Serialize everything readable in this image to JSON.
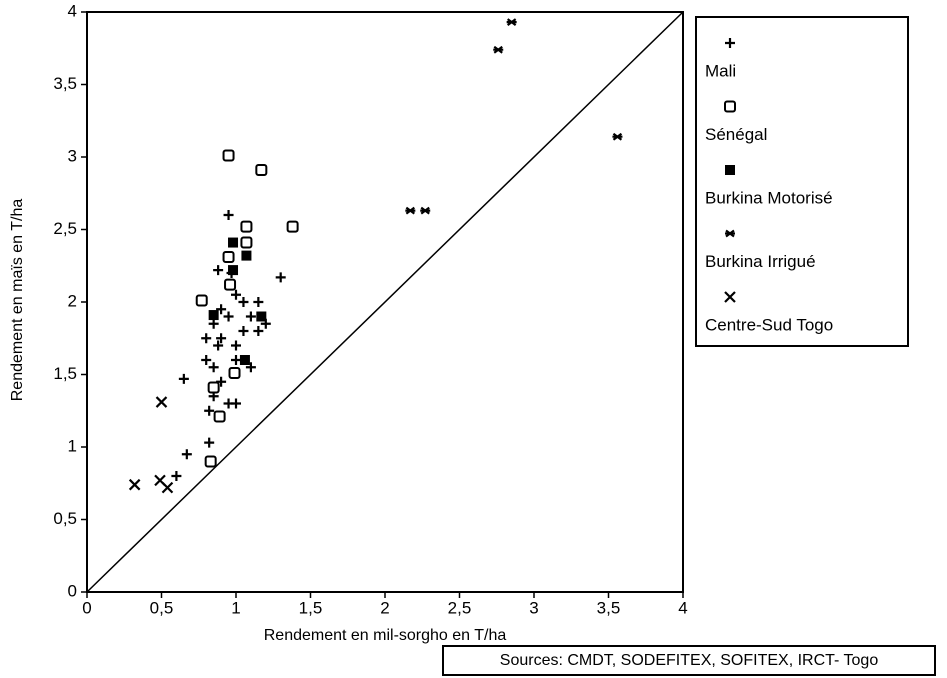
{
  "chart_data": {
    "type": "scatter",
    "xlabel": "Rendement en mil-sorgho en T/ha",
    "ylabel": "Rendement en maïs en T/ha",
    "source": "Sources: CMDT, SODEFITEX, SOFITEX, IRCT- Togo",
    "xlim": [
      0,
      4
    ],
    "ylim": [
      0,
      4
    ],
    "xticks": [
      0,
      {
        "value": 0.5,
        "label": "0,5"
      },
      1,
      {
        "value": 1.5,
        "label": "1,5"
      },
      2,
      {
        "value": 2.5,
        "label": "2,5"
      },
      3,
      {
        "value": 3.5,
        "label": "3,5"
      },
      4
    ],
    "yticks": [
      0,
      {
        "value": 0.5,
        "label": "0,5"
      },
      1,
      {
        "value": 1.5,
        "label": "1,5"
      },
      2,
      {
        "value": 2.5,
        "label": "2,5"
      },
      3,
      {
        "value": 3.5,
        "label": "3,5"
      },
      4
    ],
    "identity_line": true,
    "legend": "right",
    "series": [
      {
        "name": "Mali",
        "color": "#000000",
        "marker": "plus",
        "x": [
          0.95,
          0.88,
          0.97,
          1.3,
          1.0,
          1.05,
          1.15,
          0.9,
          0.95,
          1.1,
          1.2,
          0.85,
          1.05,
          1.15,
          0.9,
          0.8,
          1.0,
          0.88,
          0.8,
          1.0,
          0.85,
          0.9,
          0.85,
          0.95,
          1.0,
          0.82,
          0.82,
          0.67,
          0.6,
          0.65,
          1.1
        ],
        "values": [
          2.6,
          2.22,
          2.2,
          2.17,
          2.05,
          2.0,
          2.0,
          1.95,
          1.9,
          1.9,
          1.85,
          1.85,
          1.8,
          1.8,
          1.75,
          1.75,
          1.7,
          1.7,
          1.6,
          1.6,
          1.55,
          1.45,
          1.35,
          1.3,
          1.3,
          1.25,
          1.03,
          0.95,
          0.8,
          1.47,
          1.55
        ]
      },
      {
        "name": "Sénégal",
        "color": "#000000",
        "marker": "open-square",
        "x": [
          0.95,
          1.17,
          1.38,
          1.07,
          1.07,
          0.95,
          0.96,
          0.77,
          0.99,
          0.85,
          0.89,
          0.83
        ],
        "values": [
          3.01,
          2.91,
          2.52,
          2.52,
          2.41,
          2.31,
          2.12,
          2.01,
          1.51,
          1.41,
          1.21,
          0.9
        ]
      },
      {
        "name": "Burkina Motorisé",
        "color": "#000000",
        "marker": "filled-square",
        "x": [
          0.98,
          0.98,
          1.07,
          1.17,
          1.06,
          0.85
        ],
        "values": [
          2.41,
          2.22,
          2.32,
          1.9,
          1.6,
          1.91
        ]
      },
      {
        "name": "Burkina Irrigué",
        "color": "#000000",
        "marker": "asterisk",
        "x": [
          2.76,
          2.85,
          3.56,
          2.17,
          2.27
        ],
        "values": [
          3.74,
          3.93,
          3.14,
          2.63,
          2.63
        ]
      },
      {
        "name": "Centre-Sud Togo",
        "color": "#000000",
        "marker": "cross",
        "x": [
          0.32,
          0.5,
          0.49,
          0.54
        ],
        "values": [
          0.74,
          1.31,
          0.77,
          0.72
        ]
      }
    ]
  }
}
